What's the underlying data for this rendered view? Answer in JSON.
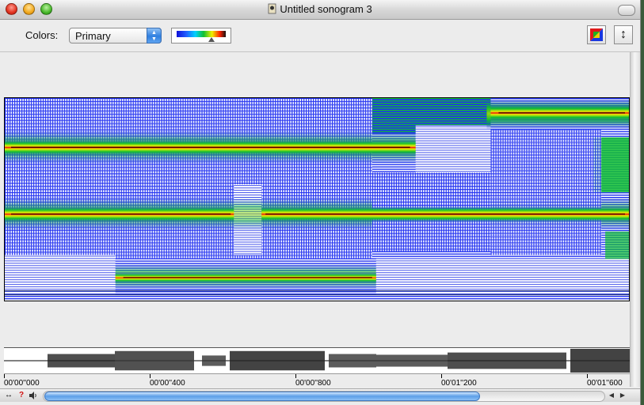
{
  "window": {
    "title": "Untitled sonogram 3"
  },
  "toolbar": {
    "colors_label": "Colors:",
    "colors_select_value": "Primary",
    "vertical_icon_glyph": "↕"
  },
  "timeline": {
    "labels": [
      "00'00''000",
      "00'00''400",
      "00'00''800",
      "00'01''200",
      "00'01''600"
    ]
  },
  "scrollbar": {
    "help_glyph": "?",
    "left_glyph": "◀",
    "right_glyph": "▶",
    "resize_glyph": "↔"
  },
  "colors": {
    "sono_low": "#1a1aff",
    "sono_mid": "#10c030",
    "sono_high": "#f0f000",
    "sono_peak": "#e81010"
  }
}
